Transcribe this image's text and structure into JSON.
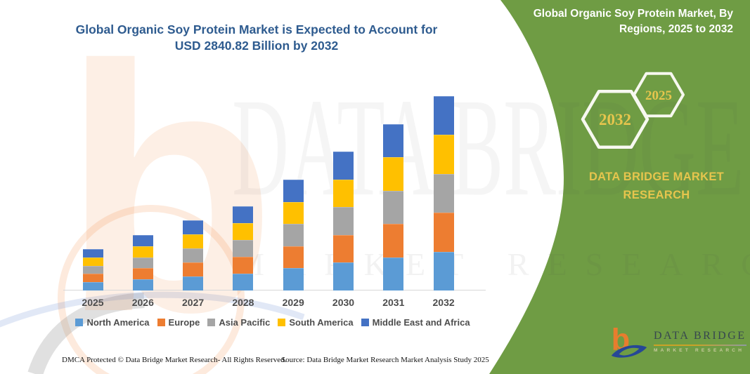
{
  "title": {
    "text": "Global Organic Soy Protein Market is Expected to Account for USD 2840.82 Billion by 2032"
  },
  "side_panel": {
    "heading": "Global Organic Soy Protein Market, By Regions, 2025 to 2032",
    "hexagons": [
      {
        "label": "2032"
      },
      {
        "label": "2025"
      }
    ],
    "brand_text": "DATA BRIDGE MARKET RESEARCH"
  },
  "chart_data": {
    "type": "bar",
    "stacked": true,
    "title": "Global Organic Soy Protein Market is Expected to Account for USD 2840.82 Billion by 2032",
    "unit": "USD Billion",
    "categories": [
      "2025",
      "2026",
      "2027",
      "2028",
      "2029",
      "2030",
      "2031",
      "2032"
    ],
    "totals": [
      606.6,
      811.2,
      1026.1,
      1230.7,
      1619.4,
      2032.7,
      2437.8,
      2840.82
    ],
    "series": [
      {
        "name": "North America",
        "color": "#5B9BD5",
        "values": [
          121.3,
          162.2,
          205.2,
          246.1,
          323.9,
          406.5,
          487.6,
          568.16
        ]
      },
      {
        "name": "Europe",
        "color": "#ED7D31",
        "values": [
          121.3,
          162.2,
          205.2,
          246.1,
          323.9,
          406.5,
          487.6,
          568.16
        ]
      },
      {
        "name": "Asia Pacific",
        "color": "#A5A5A5",
        "values": [
          121.3,
          162.2,
          205.2,
          246.1,
          323.9,
          406.5,
          487.6,
          568.16
        ]
      },
      {
        "name": "South America",
        "color": "#FFC000",
        "values": [
          121.3,
          162.2,
          205.2,
          246.1,
          323.9,
          406.5,
          487.6,
          568.16
        ]
      },
      {
        "name": "Middle East and Africa",
        "color": "#4472C4",
        "values": [
          121.3,
          162.2,
          205.2,
          246.1,
          323.9,
          406.5,
          487.6,
          568.16
        ]
      }
    ],
    "ylim": [
      0,
      2900
    ],
    "grid": false,
    "legend_position": "bottom",
    "x_axis_visible": true,
    "y_axis_visible": false
  },
  "footer": {
    "dmca": "DMCA Protected © Data Bridge Market Research-  All Rights Reserved.",
    "source": "Source: Data Bridge Market Research  Market Analysis Study 2025"
  },
  "logo": {
    "name": "DATA BRIDGE",
    "tagline": "MARKET RESEARCH"
  },
  "watermark": {
    "letter": "b",
    "big_text": "DATA BRIDGE",
    "spaced_text": "MARKET RESEARCH"
  },
  "theme": {
    "title_blue": "#2E5B8F",
    "panel_green": "#6F9C44",
    "gold": "#E6C54D",
    "axis_label_gray": "#4d4d4d",
    "axis_line_gray": "#d8d8d8",
    "logo_orange": "#E87D2E",
    "logo_blue": "#264796"
  }
}
